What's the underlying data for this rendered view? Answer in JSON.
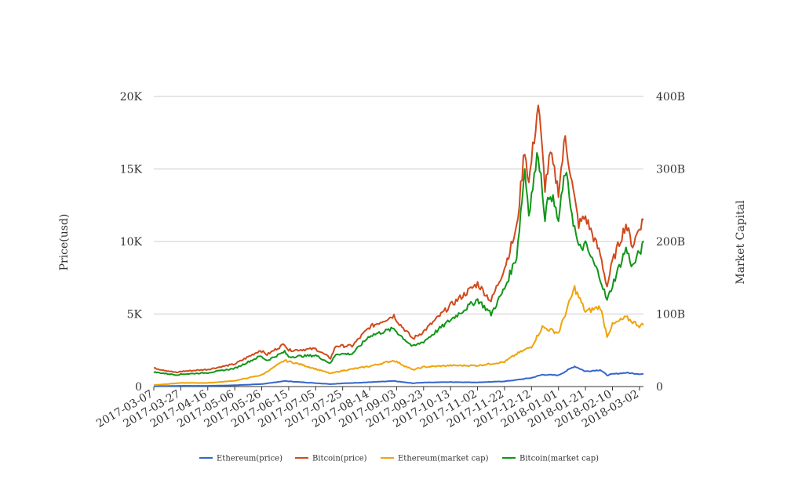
{
  "chart_data": {
    "type": "line",
    "title": "",
    "y_left_label": "Price(usd)",
    "y_right_label": "Market Capital",
    "y_left_range": [
      0,
      20000
    ],
    "y_right_range": [
      0,
      400
    ],
    "y_left_ticks": [
      "0",
      "5K",
      "10K",
      "15K",
      "20K"
    ],
    "y_right_ticks": [
      "0",
      "100B",
      "200B",
      "300B",
      "400B"
    ],
    "x_range": [
      "2017-03-07",
      "2018-03-05"
    ],
    "x_ticks": [
      "2017-03-07",
      "2017-03-27",
      "2017-04-16",
      "2017-05-06",
      "2017-05-26",
      "2017-06-15",
      "2017-07-05",
      "2017-07-25",
      "2017-08-14",
      "2017-09-03",
      "2017-09-23",
      "2017-10-13",
      "2017-11-02",
      "2017-11-22",
      "2017-12-12",
      "2018-01-01",
      "2018-01-21",
      "2018-02-10",
      "2018-03-02"
    ],
    "grid": true,
    "legend_position": "bottom",
    "series": [
      {
        "name": "Ethereum(price)",
        "axis": "left",
        "color": "#3366cc",
        "points": [
          [
            "2017-03-07",
            20
          ],
          [
            "2017-03-27",
            50
          ],
          [
            "2017-04-16",
            50
          ],
          [
            "2017-05-06",
            90
          ],
          [
            "2017-05-26",
            170
          ],
          [
            "2017-06-12",
            380
          ],
          [
            "2017-06-25",
            300
          ],
          [
            "2017-07-16",
            170
          ],
          [
            "2017-07-25",
            220
          ],
          [
            "2017-08-14",
            300
          ],
          [
            "2017-09-01",
            380
          ],
          [
            "2017-09-15",
            230
          ],
          [
            "2017-09-23",
            280
          ],
          [
            "2017-10-13",
            310
          ],
          [
            "2017-11-02",
            290
          ],
          [
            "2017-11-22",
            360
          ],
          [
            "2017-12-01",
            460
          ],
          [
            "2017-12-12",
            600
          ],
          [
            "2017-12-20",
            820
          ],
          [
            "2018-01-01",
            780
          ],
          [
            "2018-01-13",
            1400
          ],
          [
            "2018-01-21",
            1050
          ],
          [
            "2018-02-01",
            1150
          ],
          [
            "2018-02-06",
            780
          ],
          [
            "2018-02-10",
            860
          ],
          [
            "2018-02-20",
            950
          ],
          [
            "2018-03-02",
            870
          ],
          [
            "2018-03-05",
            870
          ]
        ]
      },
      {
        "name": "Bitcoin(price)",
        "axis": "left",
        "color": "#d04a1d",
        "points": [
          [
            "2017-03-07",
            1270
          ],
          [
            "2017-03-24",
            960
          ],
          [
            "2017-03-27",
            1040
          ],
          [
            "2017-04-16",
            1180
          ],
          [
            "2017-05-06",
            1550
          ],
          [
            "2017-05-25",
            2500
          ],
          [
            "2017-05-30",
            2200
          ],
          [
            "2017-06-12",
            2950
          ],
          [
            "2017-06-15",
            2500
          ],
          [
            "2017-07-05",
            2600
          ],
          [
            "2017-07-16",
            1950
          ],
          [
            "2017-07-20",
            2800
          ],
          [
            "2017-08-01",
            2800
          ],
          [
            "2017-08-14",
            4100
          ],
          [
            "2017-09-01",
            4900
          ],
          [
            "2017-09-05",
            4350
          ],
          [
            "2017-09-15",
            3300
          ],
          [
            "2017-09-23",
            3800
          ],
          [
            "2017-10-13",
            5600
          ],
          [
            "2017-11-02",
            7100
          ],
          [
            "2017-11-12",
            5900
          ],
          [
            "2017-11-22",
            8200
          ],
          [
            "2017-12-01",
            10900
          ],
          [
            "2017-12-07",
            16500
          ],
          [
            "2017-12-10",
            14000
          ],
          [
            "2017-12-17",
            19500
          ],
          [
            "2017-12-22",
            13800
          ],
          [
            "2017-12-26",
            16000
          ],
          [
            "2018-01-01",
            13500
          ],
          [
            "2018-01-06",
            17200
          ],
          [
            "2018-01-12",
            13400
          ],
          [
            "2018-01-16",
            11200
          ],
          [
            "2018-01-21",
            11700
          ],
          [
            "2018-02-01",
            9100
          ],
          [
            "2018-02-06",
            6900
          ],
          [
            "2018-02-10",
            8600
          ],
          [
            "2018-02-20",
            11200
          ],
          [
            "2018-02-25",
            9700
          ],
          [
            "2018-03-02",
            11000
          ],
          [
            "2018-03-05",
            11500
          ]
        ]
      },
      {
        "name": "Ethereum(market cap)",
        "axis": "right",
        "color": "#f0a30a",
        "points": [
          [
            "2017-03-07",
            2
          ],
          [
            "2017-03-27",
            5
          ],
          [
            "2017-04-16",
            5
          ],
          [
            "2017-05-06",
            8
          ],
          [
            "2017-05-26",
            16
          ],
          [
            "2017-06-12",
            36
          ],
          [
            "2017-06-25",
            30
          ],
          [
            "2017-07-16",
            18
          ],
          [
            "2017-07-25",
            22
          ],
          [
            "2017-08-14",
            28
          ],
          [
            "2017-09-01",
            36
          ],
          [
            "2017-09-15",
            23
          ],
          [
            "2017-09-23",
            27
          ],
          [
            "2017-10-13",
            29
          ],
          [
            "2017-11-02",
            29
          ],
          [
            "2017-11-22",
            34
          ],
          [
            "2017-12-01",
            45
          ],
          [
            "2017-12-12",
            55
          ],
          [
            "2017-12-20",
            82
          ],
          [
            "2018-01-01",
            74
          ],
          [
            "2018-01-13",
            136
          ],
          [
            "2018-01-21",
            103
          ],
          [
            "2018-02-01",
            110
          ],
          [
            "2018-02-06",
            70
          ],
          [
            "2018-02-10",
            85
          ],
          [
            "2018-02-20",
            95
          ],
          [
            "2018-03-02",
            84
          ],
          [
            "2018-03-05",
            85
          ]
        ]
      },
      {
        "name": "Bitcoin(market cap)",
        "axis": "right",
        "color": "#109618",
        "points": [
          [
            "2017-03-07",
            20
          ],
          [
            "2017-03-24",
            16
          ],
          [
            "2017-03-27",
            17
          ],
          [
            "2017-04-16",
            19
          ],
          [
            "2017-05-06",
            25
          ],
          [
            "2017-05-25",
            42
          ],
          [
            "2017-05-30",
            36
          ],
          [
            "2017-06-12",
            48
          ],
          [
            "2017-06-15",
            41
          ],
          [
            "2017-07-05",
            43
          ],
          [
            "2017-07-16",
            32
          ],
          [
            "2017-07-20",
            45
          ],
          [
            "2017-08-01",
            45
          ],
          [
            "2017-08-14",
            70
          ],
          [
            "2017-09-01",
            80
          ],
          [
            "2017-09-05",
            72
          ],
          [
            "2017-09-15",
            55
          ],
          [
            "2017-09-23",
            62
          ],
          [
            "2017-10-13",
            92
          ],
          [
            "2017-11-02",
            120
          ],
          [
            "2017-11-12",
            100
          ],
          [
            "2017-11-22",
            135
          ],
          [
            "2017-12-01",
            180
          ],
          [
            "2017-12-07",
            300
          ],
          [
            "2017-12-10",
            240
          ],
          [
            "2017-12-17",
            325
          ],
          [
            "2017-12-22",
            235
          ],
          [
            "2017-12-26",
            270
          ],
          [
            "2018-01-01",
            228
          ],
          [
            "2018-01-06",
            298
          ],
          [
            "2018-01-12",
            228
          ],
          [
            "2018-01-16",
            190
          ],
          [
            "2018-01-21",
            195
          ],
          [
            "2018-02-01",
            150
          ],
          [
            "2018-02-06",
            118
          ],
          [
            "2018-02-10",
            140
          ],
          [
            "2018-02-20",
            190
          ],
          [
            "2018-02-25",
            165
          ],
          [
            "2018-03-02",
            185
          ],
          [
            "2018-03-05",
            195
          ]
        ]
      }
    ]
  }
}
